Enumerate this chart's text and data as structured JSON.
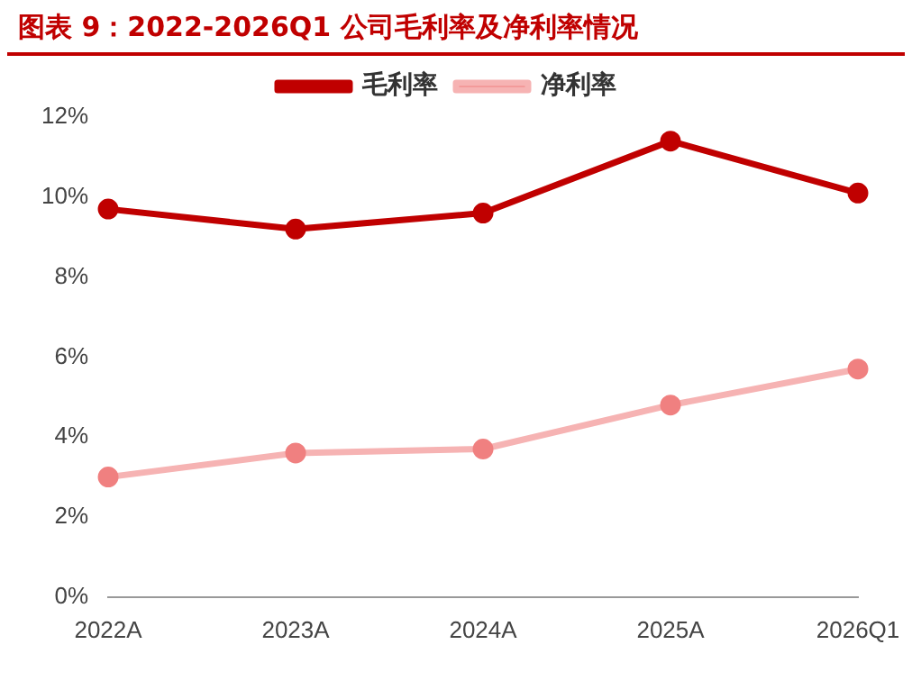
{
  "chart_data": {
    "type": "line",
    "title": "图表 9：2022-2026Q1 公司毛利率及净利率情况",
    "categories": [
      "2022A",
      "2023A",
      "2024A",
      "2025A",
      "2026Q1"
    ],
    "series": [
      {
        "name": "毛利率",
        "color": "#c00000",
        "values": [
          9.7,
          9.2,
          9.6,
          11.4,
          10.1
        ]
      },
      {
        "name": "净利率",
        "color": "#f08080",
        "values": [
          3.0,
          3.6,
          3.7,
          4.8,
          5.7
        ]
      }
    ],
    "ylim": [
      0,
      12
    ],
    "yticks": [
      {
        "value": 0,
        "label": "0%"
      },
      {
        "value": 2,
        "label": "2%"
      },
      {
        "value": 4,
        "label": "4%"
      },
      {
        "value": 6,
        "label": "6%"
      },
      {
        "value": 8,
        "label": "8%"
      },
      {
        "value": 10,
        "label": "10%"
      },
      {
        "value": 12,
        "label": "12%"
      }
    ],
    "grid": false,
    "legend": "top",
    "marker": "circle",
    "line_style": "solid"
  }
}
